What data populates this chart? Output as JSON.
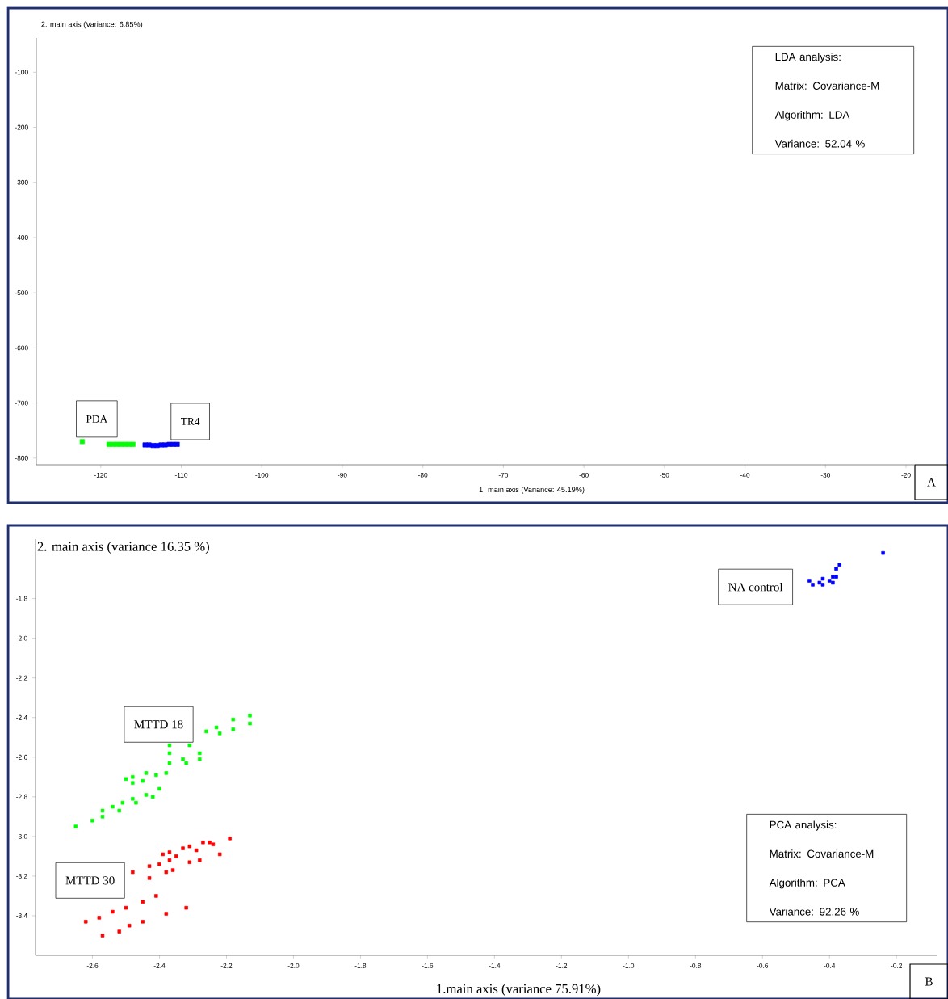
{
  "chart_data": [
    {
      "type": "scatter",
      "xlabel": "1. main axis (Variance: 45.19%)",
      "ylabel": "2. main axis (Variance: 6.85%)",
      "xlim": [
        -128,
        -19
      ],
      "ylim": [
        -812,
        -38
      ],
      "xticks": [
        -120,
        -110,
        -100,
        -90,
        -80,
        -70,
        -60,
        -50,
        -40,
        -30,
        -20
      ],
      "yticks": [
        -800,
        -700,
        -600,
        -500,
        -400,
        -300,
        -200,
        -100
      ],
      "marker": "square",
      "annotations": [
        "LDA analysis:",
        "Matrix: Covariance-M",
        "Algorithm: LDA",
        "Variance: 52.04 %",
        "A"
      ],
      "series": [
        {
          "name": "PDA",
          "color": "#00ff00",
          "x": [
            -122.3,
            -119.0,
            -118.5,
            -118.0,
            -117.5,
            -117.0,
            -116.5,
            -116.0
          ],
          "values": [
            -770,
            -775,
            -775,
            -775,
            -775,
            -775,
            -775,
            -775
          ]
        },
        {
          "name": "TR4",
          "color": "#0000ff",
          "x": [
            -114.5,
            -114.0,
            -113.5,
            -113.0,
            -112.5,
            -112.0,
            -111.5,
            -111.0,
            -110.5
          ],
          "values": [
            -776,
            -776,
            -777,
            -777,
            -776,
            -776,
            -775,
            -775,
            -775
          ]
        }
      ]
    },
    {
      "type": "scatter",
      "xlabel": "1.main axis (variance 75.91%)",
      "ylabel": "2. main axis (variance 16.35 %)",
      "xlim": [
        -2.77,
        -0.08
      ],
      "ylim": [
        -3.6,
        -1.5
      ],
      "xticks": [
        -2.6,
        -2.4,
        -2.2,
        {
          "value": -2.0,
          "label": "-2.0"
        },
        -1.8,
        -1.6,
        -1.4,
        -1.2,
        {
          "value": -1.0,
          "label": "-1.0"
        },
        -0.8,
        -0.6,
        -0.4,
        -0.2
      ],
      "yticks": [
        -3.4,
        -3.2,
        {
          "value": -3.0,
          "label": "-3.0"
        },
        -2.8,
        -2.6,
        -2.4,
        -2.2,
        {
          "value": -2.0,
          "label": "-2.0"
        },
        -1.8
      ],
      "marker": "square",
      "annotations": [
        "PCA analysis:",
        "Matrix: Covariance-M",
        "Algorithm: PCA",
        "Variance: 92.26 %",
        "B"
      ],
      "series": [
        {
          "name": "NA control",
          "color": "#0000ff",
          "x": [
            -0.24,
            -0.37,
            -0.38,
            -0.39,
            -0.46,
            -0.45,
            -0.43,
            -0.42,
            -0.42,
            -0.4,
            -0.39,
            -0.38
          ],
          "values": [
            -1.57,
            -1.63,
            -1.65,
            -1.69,
            -1.71,
            -1.73,
            -1.72,
            -1.7,
            -1.73,
            -1.71,
            -1.72,
            -1.69
          ]
        },
        {
          "name": "MTTD 18",
          "color": "#00ff00",
          "x": [
            -2.13,
            -2.18,
            -2.13,
            -2.23,
            -2.26,
            -2.22,
            -2.18,
            -2.37,
            -2.31,
            -2.37,
            -2.28,
            -2.28,
            -2.33,
            -2.32,
            -2.37,
            -2.44,
            -2.38,
            -2.41,
            -2.48,
            -2.45,
            -2.5,
            -2.48,
            -2.4,
            -2.44,
            -2.42,
            -2.48,
            -2.51,
            -2.47,
            -2.54,
            -2.52,
            -2.57,
            -2.57,
            -2.6,
            -2.65
          ],
          "values": [
            -2.39,
            -2.41,
            -2.43,
            -2.45,
            -2.47,
            -2.48,
            -2.46,
            -2.54,
            -2.54,
            -2.58,
            -2.58,
            -2.61,
            -2.61,
            -2.63,
            -2.63,
            -2.68,
            -2.68,
            -2.69,
            -2.7,
            -2.72,
            -2.71,
            -2.73,
            -2.76,
            -2.79,
            -2.8,
            -2.81,
            -2.83,
            -2.83,
            -2.85,
            -2.87,
            -2.87,
            -2.9,
            -2.92,
            -2.95
          ]
        },
        {
          "name": "MTTD 30",
          "color": "#ff0000",
          "x": [
            -2.19,
            -2.25,
            -2.27,
            -2.24,
            -2.31,
            -2.33,
            -2.29,
            -2.37,
            -2.22,
            -2.39,
            -2.35,
            -2.28,
            -2.37,
            -2.4,
            -2.31,
            -2.43,
            -2.36,
            -2.38,
            -2.48,
            -2.43,
            -2.41,
            -2.45,
            -2.5,
            -2.32,
            -2.54,
            -2.58,
            -2.38,
            -2.62,
            -2.45,
            -2.49,
            -2.52,
            -2.57
          ],
          "values": [
            -3.01,
            -3.03,
            -3.03,
            -3.04,
            -3.05,
            -3.06,
            -3.07,
            -3.08,
            -3.09,
            -3.09,
            -3.1,
            -3.12,
            -3.12,
            -3.14,
            -3.13,
            -3.15,
            -3.17,
            -3.18,
            -3.18,
            -3.21,
            -3.3,
            -3.33,
            -3.36,
            -3.36,
            -3.38,
            -3.41,
            -3.39,
            -3.43,
            -3.43,
            -3.45,
            -3.48,
            -3.5
          ]
        }
      ]
    }
  ]
}
